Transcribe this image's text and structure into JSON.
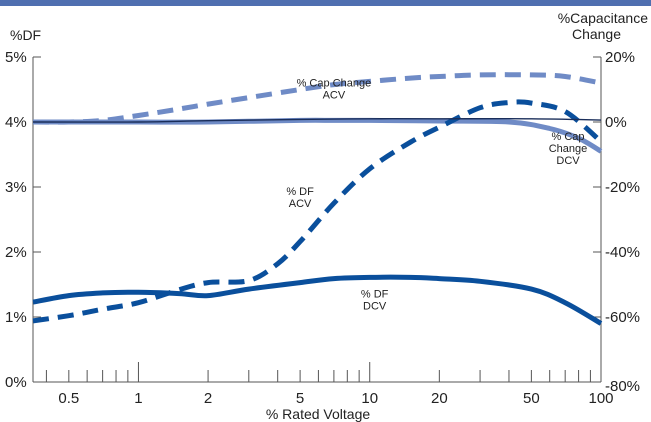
{
  "chart_data": {
    "type": "line",
    "xlabel": "% Rated Voltage",
    "ylabel_left": "%DF",
    "ylabel_right": [
      "%Capacitance",
      "Change"
    ],
    "x_scale": "log",
    "xlim": [
      0.35,
      100
    ],
    "ylim_left": [
      0,
      5
    ],
    "ylim_right": [
      -80,
      20
    ],
    "x_ticks": [
      0.5,
      1,
      2,
      5,
      10,
      20,
      50,
      100
    ],
    "x_tick_labels": [
      "0.5",
      "1",
      "2",
      "5",
      "10",
      "20",
      "50",
      "100"
    ],
    "x_minor_ticks": [
      0.4,
      0.6,
      0.7,
      0.8,
      0.9,
      3,
      4,
      6,
      7,
      8,
      9,
      30,
      40,
      60,
      70,
      80,
      90
    ],
    "y_left_ticks": [
      0,
      1,
      2,
      3,
      4,
      5
    ],
    "y_left_tick_labels": [
      "0%",
      "1%",
      "2%",
      "3%",
      "4%",
      "5%"
    ],
    "y_right_ticks": [
      -80,
      -60,
      -40,
      -20,
      0,
      20
    ],
    "y_right_tick_labels": [
      "-80%",
      "-60%",
      "-40%",
      "-20%",
      "0%",
      "20%"
    ],
    "grid": false,
    "series": [
      {
        "axis": "left",
        "color": "#0a4f9c",
        "dashed": false,
        "x": [
          0.35,
          0.5,
          0.7,
          1,
          1.5,
          2,
          3,
          5,
          7,
          10,
          15,
          20,
          30,
          50,
          70,
          100
        ],
        "y": [
          1.23,
          1.33,
          1.37,
          1.38,
          1.36,
          1.33,
          1.43,
          1.53,
          1.59,
          1.61,
          1.61,
          1.59,
          1.55,
          1.43,
          1.22,
          0.9
        ]
      },
      {
        "axis": "left",
        "color": "#0a4f9c",
        "dashed": true,
        "x": [
          0.35,
          0.5,
          0.7,
          1,
          1.5,
          2,
          3,
          4,
          5,
          7,
          10,
          15,
          20,
          30,
          40,
          50,
          70,
          100
        ],
        "y": [
          0.94,
          1.02,
          1.12,
          1.22,
          1.42,
          1.53,
          1.56,
          1.82,
          2.16,
          2.75,
          3.28,
          3.69,
          3.92,
          4.22,
          4.3,
          4.29,
          4.16,
          3.7
        ]
      },
      {
        "axis": "right",
        "color": "#6f8bc6",
        "dashed": true,
        "x": [
          0.35,
          0.5,
          0.7,
          1,
          1.5,
          2,
          3,
          5,
          7,
          10,
          15,
          20,
          30,
          50,
          70,
          100
        ],
        "y": [
          0,
          0,
          0.5,
          2,
          4,
          5.5,
          7.5,
          10,
          11.5,
          12.5,
          13.5,
          14,
          14.5,
          14.5,
          14,
          12
        ]
      },
      {
        "axis": "right",
        "color": "#6f8bc6",
        "dashed": false,
        "x": [
          0.35,
          0.5,
          1,
          2,
          5,
          7,
          10,
          20,
          40,
          60,
          80,
          100
        ],
        "y": [
          0,
          0,
          0,
          0,
          0.5,
          0.5,
          0.5,
          0.3,
          0,
          -2,
          -5,
          -9
        ]
      },
      {
        "axis": "left",
        "color": "#1a2e5a",
        "dashed": false,
        "x": [
          0.35,
          1,
          2,
          5,
          10,
          20,
          50,
          100
        ],
        "y": [
          4.0,
          4.0,
          4.02,
          4.04,
          4.05,
          4.05,
          4.05,
          4.03
        ]
      }
    ],
    "annotations": [
      {
        "lines": [
          "% Cap Change",
          "ACV"
        ],
        "x": 7,
        "y_left": 4.55,
        "anchor": "middle"
      },
      {
        "lines": [
          "% DF",
          "ACV"
        ],
        "x": 5,
        "y_left": 2.88,
        "anchor": "middle"
      },
      {
        "lines": [
          "% DF",
          "DCV"
        ],
        "x": 10.5,
        "y_left": 1.3,
        "anchor": "middle"
      },
      {
        "lines": [
          "% Cap",
          "Change",
          "DCV"
        ],
        "x": 72,
        "y_left": 3.72,
        "anchor": "middle"
      }
    ]
  },
  "colors": {
    "top_stripe": "#4f6fb0",
    "axis": "#555555",
    "text": "#222222"
  }
}
